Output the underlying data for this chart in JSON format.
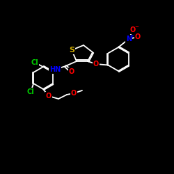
{
  "bg_color": "#000000",
  "bond_color": "#ffffff",
  "S_color": "#ccaa00",
  "N_color": "#0000ff",
  "O_color": "#ff0000",
  "Cl_color": "#00cc00",
  "NH_color": "#0000ff",
  "fig_size": [
    2.5,
    2.5
  ],
  "dpi": 100,
  "xlim": [
    0,
    250
  ],
  "ylim": [
    0,
    250
  ]
}
